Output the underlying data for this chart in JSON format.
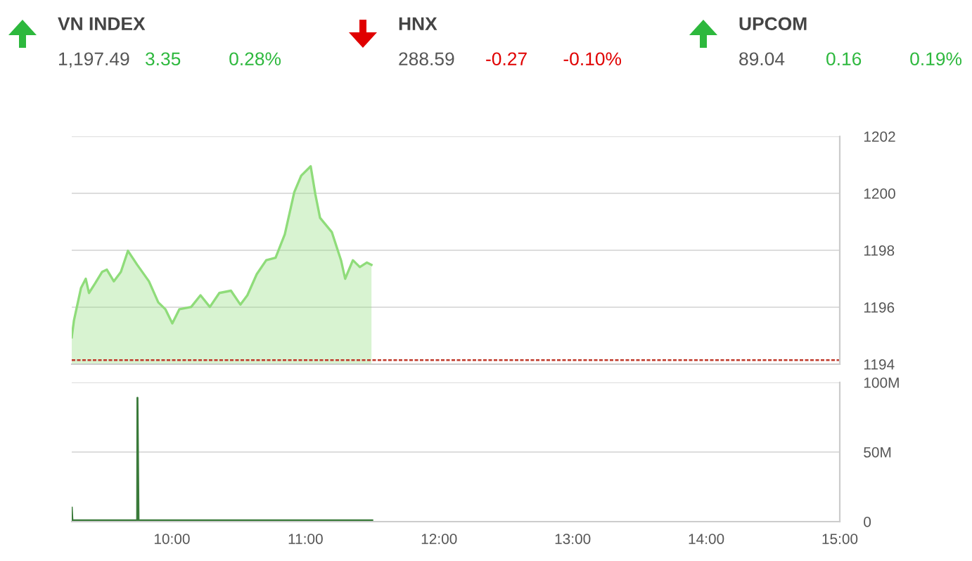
{
  "chart_data": [
    {
      "type": "other",
      "categories": [
        "VN INDEX",
        "HNX",
        "UPCOM"
      ],
      "values": [
        3.35,
        -0.27,
        0.16
      ],
      "colors": [
        "#2db83d",
        "#e00000",
        "#2db83d"
      ],
      "data_labels": true,
      "annotations": [
        "1,197.49",
        "0.28%",
        "288.59",
        "-0.10%",
        "89.04",
        "0.19%"
      ]
    },
    {
      "type": "area",
      "xlim": [
        9.25,
        15
      ],
      "ylim": [
        1194,
        1202
      ],
      "yticks": [
        1194,
        1196,
        1198,
        1200,
        1202
      ],
      "tick_labels": "y",
      "grid": "y",
      "ref_lines": [
        {
          "axis": "y",
          "value": 1194.14,
          "color": "#c0392b",
          "line_style": "dashed"
        }
      ],
      "series": [
        {
          "color": "#8fdc7a",
          "x": [
            9.25,
            9.266,
            9.319,
            9.355,
            9.379,
            9.424,
            9.477,
            9.513,
            9.565,
            9.618,
            9.671,
            9.74,
            9.828,
            9.898,
            9.951,
            10.003,
            10.056,
            10.144,
            10.214,
            10.284,
            10.355,
            10.442,
            10.513,
            10.565,
            10.635,
            10.706,
            10.776,
            10.845,
            10.916,
            10.968,
            11.039,
            11.074,
            11.109,
            11.197,
            11.266,
            11.297,
            11.355,
            11.407,
            11.46,
            11.494
          ],
          "values": [
            1194.94,
            1195.52,
            1196.67,
            1197.0,
            1196.5,
            1196.83,
            1197.24,
            1197.32,
            1196.91,
            1197.24,
            1197.98,
            1197.49,
            1196.91,
            1196.17,
            1195.93,
            1195.43,
            1195.93,
            1196.01,
            1196.42,
            1196.01,
            1196.5,
            1196.58,
            1196.09,
            1196.42,
            1197.16,
            1197.65,
            1197.74,
            1198.56,
            1200.04,
            1200.62,
            1200.95,
            1199.96,
            1199.14,
            1198.64,
            1197.65,
            1197.0,
            1197.65,
            1197.41,
            1197.57,
            1197.49
          ]
        }
      ]
    },
    {
      "type": "line",
      "xlim": [
        9.25,
        15
      ],
      "xticks": [
        {
          "value": 10,
          "label": "10:00"
        },
        {
          "value": 11,
          "label": "11:00"
        },
        {
          "value": 12,
          "label": "12:00"
        },
        {
          "value": 13,
          "label": "13:00"
        },
        {
          "value": 14,
          "label": "14:00"
        },
        {
          "value": 15,
          "label": "15:00"
        }
      ],
      "ylim": [
        0,
        100
      ],
      "yticks": [
        0,
        {
          "value": 50,
          "label": "50M"
        },
        {
          "value": 100,
          "label": "100M"
        }
      ],
      "grid": "y",
      "series": [
        {
          "color": "#3a7a3a",
          "x": [
            9.25,
            9.255,
            9.27,
            9.74,
            9.742,
            9.75,
            11.5
          ],
          "values": [
            10,
            1,
            1,
            1,
            89,
            1,
            1
          ]
        }
      ]
    }
  ]
}
